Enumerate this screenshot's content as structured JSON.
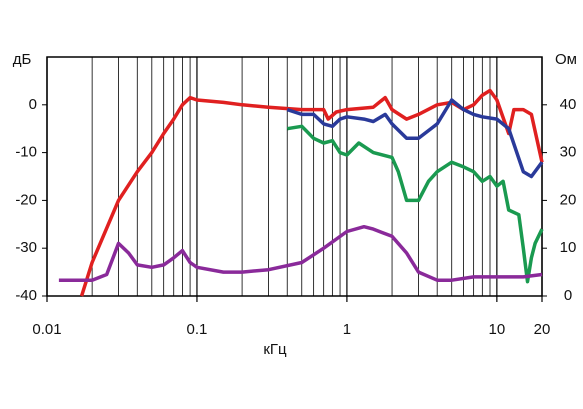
{
  "chart_data": {
    "type": "line",
    "y_label": "дБ",
    "y2_label": "Ом",
    "x_label": "кГц",
    "xlog": true,
    "xlim": [
      0.01,
      20
    ],
    "xticks": [
      0.01,
      0.1,
      1,
      10,
      20
    ],
    "xgrid": [
      0.02,
      0.03,
      0.04,
      0.05,
      0.06,
      0.07,
      0.08,
      0.09,
      0.2,
      0.3,
      0.4,
      0.5,
      0.6,
      0.7,
      0.8,
      0.9,
      2,
      3,
      4,
      5,
      6,
      7,
      8,
      9
    ],
    "ylim": [
      -40,
      10
    ],
    "yticks": [
      0,
      -10,
      -20,
      -30,
      -40
    ],
    "y2lim": [
      0,
      50
    ],
    "y2ticks": [
      40,
      30,
      20,
      10,
      0
    ],
    "series": [
      {
        "name": "red",
        "color": "#e02020",
        "x": [
          0.017,
          0.02,
          0.03,
          0.04,
          0.05,
          0.06,
          0.07,
          0.08,
          0.09,
          0.1,
          0.15,
          0.2,
          0.3,
          0.5,
          0.7,
          0.75,
          0.85,
          1,
          1.5,
          1.8,
          2,
          2.5,
          3,
          4,
          5,
          6,
          7,
          8,
          9,
          10,
          12,
          13,
          15,
          17,
          20
        ],
        "values": [
          -40,
          -33,
          -20,
          -14,
          -10,
          -6,
          -3,
          0,
          1.5,
          1,
          0.5,
          0,
          -0.5,
          -1,
          -1,
          -3,
          -1.5,
          -1,
          -0.5,
          1.5,
          -1,
          -3,
          -2,
          0,
          0.5,
          -1,
          0,
          2,
          3,
          1,
          -6,
          -1,
          -1,
          -2,
          -12
        ]
      },
      {
        "name": "blue",
        "color": "#2a3a9a",
        "x": [
          0.4,
          0.5,
          0.6,
          0.7,
          0.8,
          0.9,
          1,
          1.3,
          1.5,
          1.8,
          2,
          2.5,
          3,
          4,
          5,
          6,
          7,
          8,
          10,
          12,
          15,
          17,
          20
        ],
        "values": [
          -1,
          -2,
          -2,
          -4,
          -4.5,
          -3,
          -2.5,
          -3,
          -3.5,
          -2,
          -4,
          -7,
          -7,
          -4,
          1,
          -1,
          -2,
          -2.5,
          -3,
          -5,
          -14,
          -15,
          -12
        ]
      },
      {
        "name": "green",
        "color": "#1a9a50",
        "x": [
          0.4,
          0.5,
          0.6,
          0.7,
          0.8,
          0.9,
          1,
          1.2,
          1.5,
          2,
          2.2,
          2.5,
          3,
          3.5,
          4,
          5,
          6,
          7,
          8,
          9,
          10,
          11,
          12,
          14,
          15,
          16,
          17,
          18,
          20
        ],
        "values": [
          -5,
          -4.5,
          -7,
          -8,
          -7.5,
          -10,
          -10.5,
          -8,
          -10,
          -11,
          -14,
          -20,
          -20,
          -16,
          -14,
          -12,
          -13,
          -14,
          -16,
          -15,
          -17,
          -16,
          -22,
          -23,
          -30,
          -37,
          -32,
          -29,
          -26
        ]
      },
      {
        "name": "purple",
        "color": "#8a2a9a",
        "axis": "y2",
        "x": [
          0.012,
          0.02,
          0.025,
          0.03,
          0.035,
          0.04,
          0.05,
          0.06,
          0.07,
          0.08,
          0.09,
          0.1,
          0.15,
          0.2,
          0.3,
          0.5,
          0.7,
          1,
          1.3,
          1.5,
          2,
          2.5,
          3,
          4,
          5,
          7,
          10,
          15,
          20
        ],
        "values": [
          3.3,
          3.3,
          4.5,
          11,
          9,
          6.5,
          6,
          6.5,
          8,
          9.5,
          7,
          6,
          5,
          5,
          5.5,
          7,
          10,
          13.5,
          14.5,
          14,
          12.5,
          9,
          5,
          3.3,
          3.3,
          4,
          4,
          4,
          4.5
        ]
      }
    ]
  }
}
